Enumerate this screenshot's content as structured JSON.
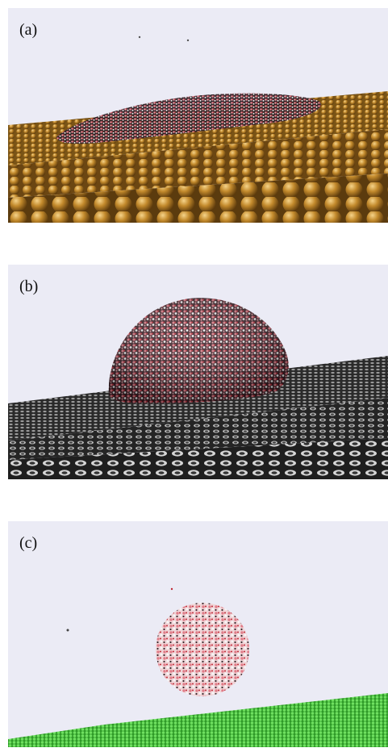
{
  "panels": [
    {
      "label": "(a)"
    },
    {
      "label": "(b)"
    },
    {
      "label": "(c)"
    }
  ],
  "colors": {
    "background": "#ebebf5",
    "gold": "#b07a22",
    "graphite": "#3a3a3a",
    "green": "#44c23a",
    "water": "#d26b74"
  }
}
